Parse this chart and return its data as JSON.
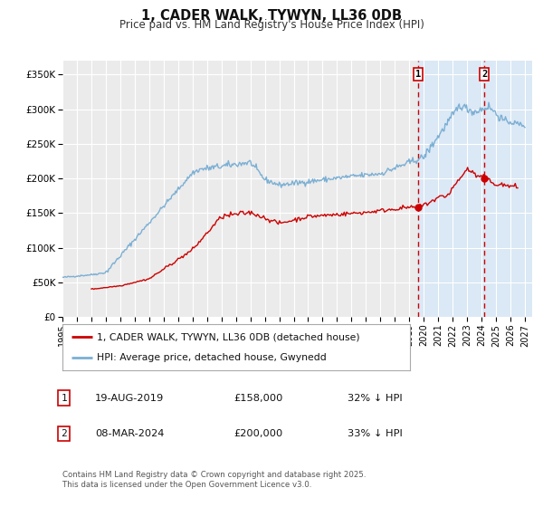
{
  "title": "1, CADER WALK, TYWYN, LL36 0DB",
  "subtitle": "Price paid vs. HM Land Registry's House Price Index (HPI)",
  "background_color": "#ffffff",
  "plot_bg_color": "#ebebeb",
  "grid_color": "#ffffff",
  "red_line_color": "#cc0000",
  "blue_line_color": "#7bafd4",
  "dashed_line_color": "#cc0000",
  "shade_color": "#dbe8f5",
  "hatch_color": "#b0c8df",
  "ylim": [
    0,
    370000
  ],
  "xlim_start": 1995.0,
  "xlim_end": 2027.5,
  "event1_x": 2019.63,
  "event1_y_red": 158000,
  "event1_label": "19-AUG-2019",
  "event1_price": "£158,000",
  "event1_hpi": "32% ↓ HPI",
  "event2_x": 2024.19,
  "event2_y_red": 200000,
  "event2_label": "08-MAR-2024",
  "event2_price": "£200,000",
  "event2_hpi": "33% ↓ HPI",
  "legend_label_red": "1, CADER WALK, TYWYN, LL36 0DB (detached house)",
  "legend_label_blue": "HPI: Average price, detached house, Gwynedd",
  "footer_text": "Contains HM Land Registry data © Crown copyright and database right 2025.\nThis data is licensed under the Open Government Licence v3.0.",
  "yticks": [
    0,
    50000,
    100000,
    150000,
    200000,
    250000,
    300000,
    350000
  ],
  "ytick_labels": [
    "£0",
    "£50K",
    "£100K",
    "£150K",
    "£200K",
    "£250K",
    "£300K",
    "£350K"
  ]
}
